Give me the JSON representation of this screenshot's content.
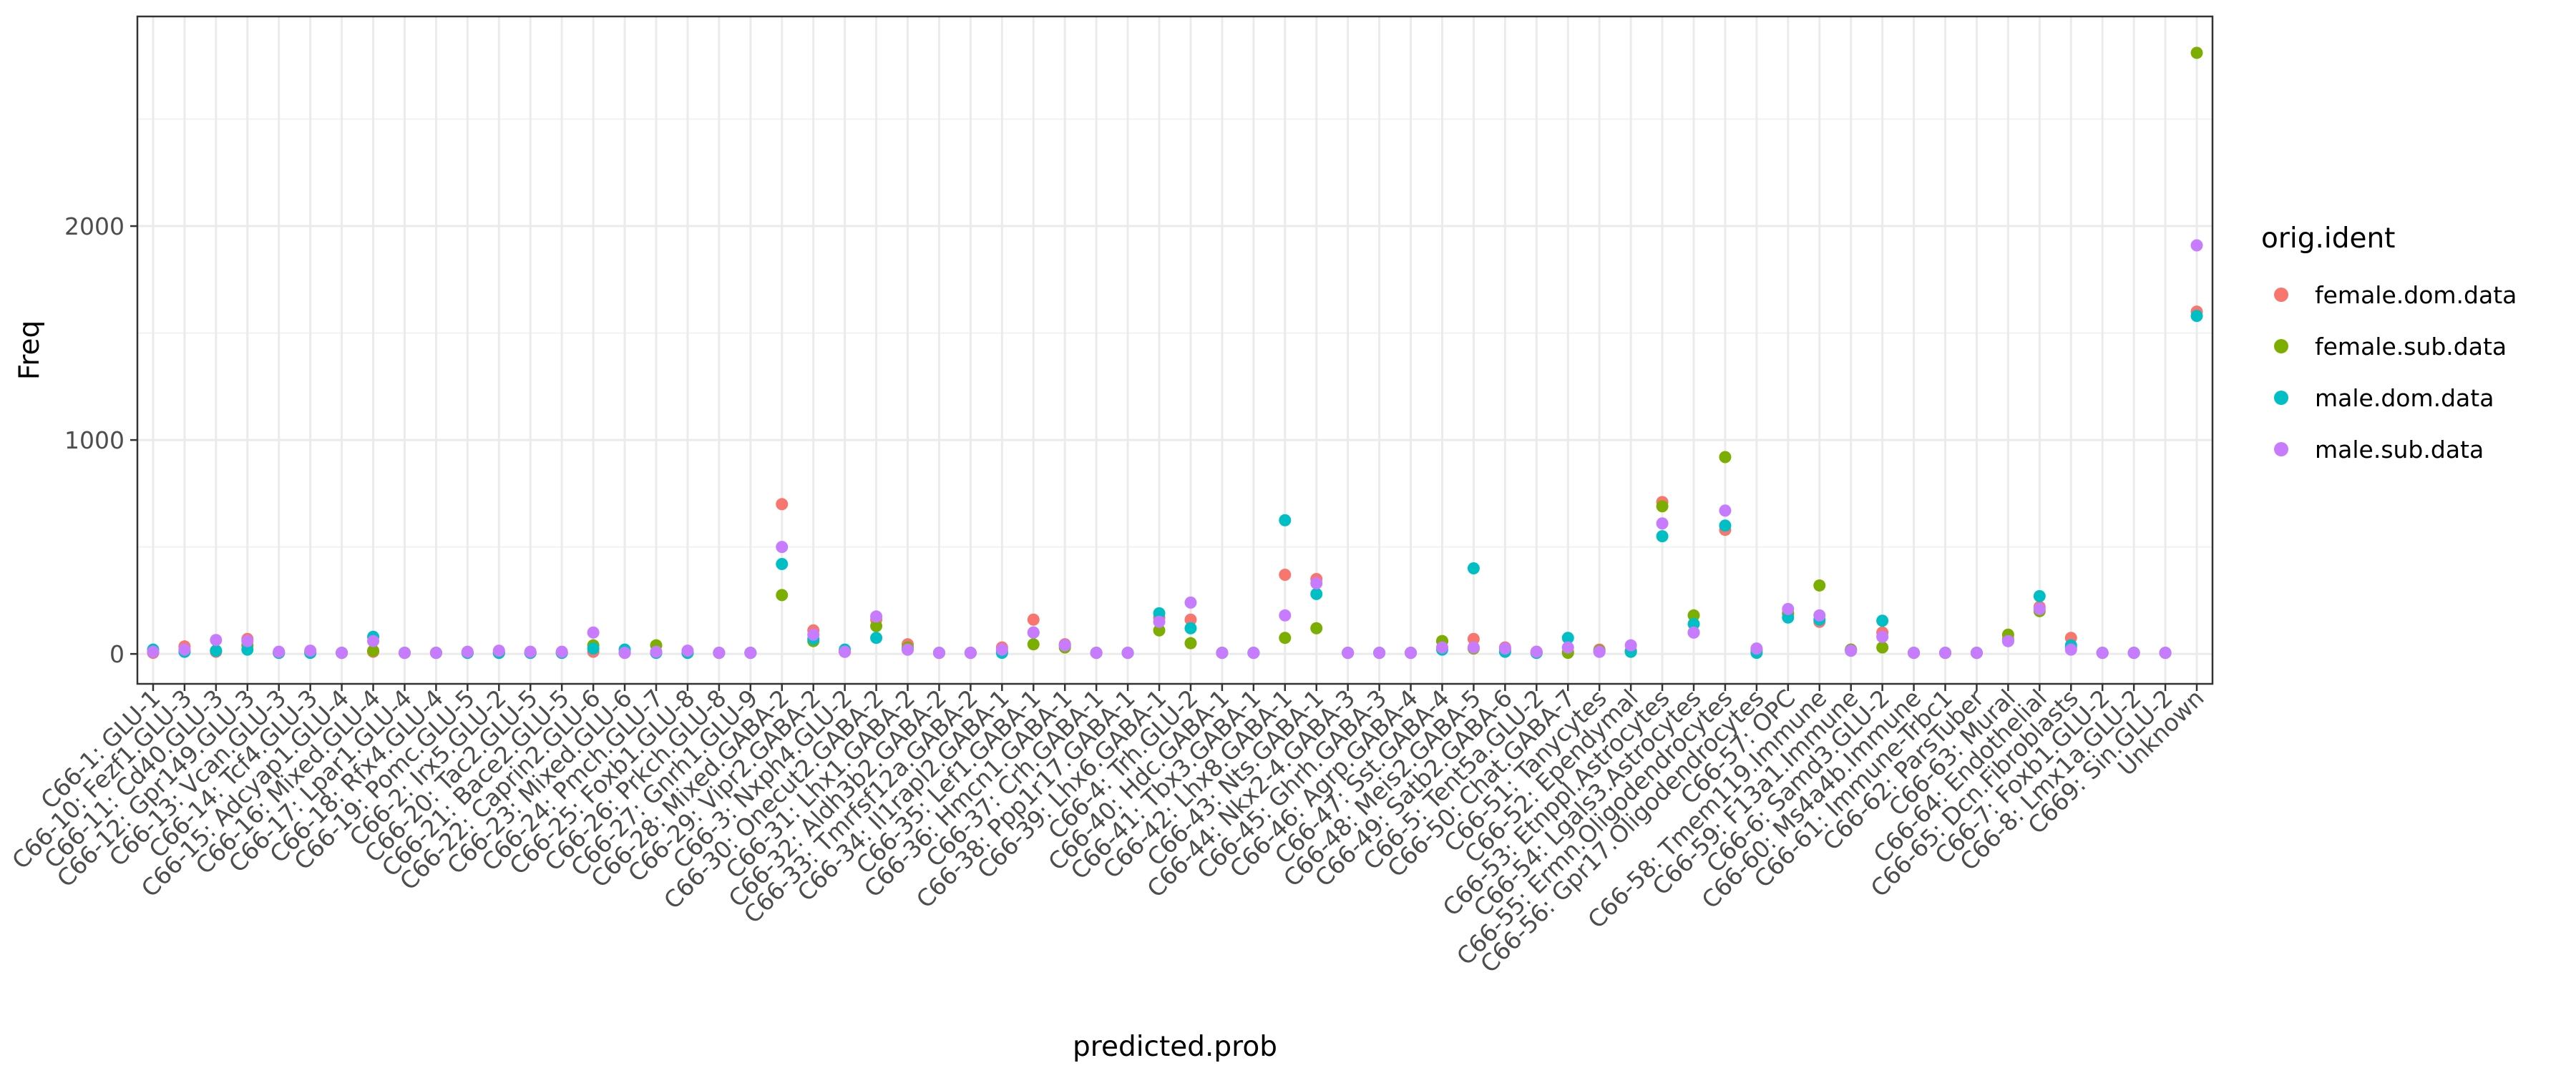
{
  "chart_data": {
    "type": "scatter",
    "xlabel": "predicted.prob",
    "ylabel": "Freq",
    "ylim": [
      -140,
      2980
    ],
    "yticks": [
      0,
      1000,
      2000
    ],
    "grid": true,
    "legend_title": "orig.ident",
    "legend_position": "right",
    "categories": [
      "C66-1: GLU-1",
      "C66-10: Fezf1.GLU-3",
      "C66-11: Cd40.GLU-3",
      "C66-12: Gpr149.GLU-3",
      "C66-13: Vcan.GLU-3",
      "C66-14: Tcf4.GLU-3",
      "C66-15: Adcyap1.GLU-4",
      "C66-16: Mixed.GLU-4",
      "C66-17: Lpar1.GLU-4",
      "C66-18: Rfx4.GLU-4",
      "C66-19: Pomc.GLU-5",
      "C66-2: Irx5.GLU-2",
      "C66-20: Tac2.GLU-5",
      "C66-21: Bace2.GLU-5",
      "C66-22: Caprin2.GLU-6",
      "C66-23: Mixed.GLU-6",
      "C66-24: Pmch.GLU-7",
      "C66-25: Foxb1.GLU-8",
      "C66-26: Prkch.GLU-8",
      "C66-27: Gnrh1.GLU-9",
      "C66-28: Mixed.GABA-2",
      "C66-29: Vipr2.GABA-2",
      "C66-3: Nxph4.GLU-2",
      "C66-30: Onecut2.GABA-2",
      "C66-31: Lhx1.GABA-2",
      "C66-32: Aldh3b2.GABA-2",
      "C66-33: Tmrfsf12a.GABA-2",
      "C66-34: Il1rapl2.GABA-1",
      "C66-35: Lef1.GABA-1",
      "C66-36: Hmcn1.GABA-1",
      "C66-37: Crh.GABA-1",
      "C66-38: Ppp1r17.GABA-1",
      "C66-39: Lhx6.GABA-1",
      "C66-4: Trh.GLU-2",
      "C66-40: Hdc.GABA-1",
      "C66-41: Tbx3.GABA-1",
      "C66-42: Lhx8.GABA-1",
      "C66-43: Nts.GABA-1",
      "C66-44: Nkx2-4.GABA-3",
      "C66-45: Ghrh.GABA-3",
      "C66-46: Agrp.GABA-4",
      "C66-47: Sst.GABA-4",
      "C66-48: Meis2.GABA-5",
      "C66-49: Satb2.GABA-6",
      "C66-5: Tent5a.GLU-2",
      "C66-50: Chat.GABA-7",
      "C66-51: Tanycytes",
      "C66-52: Ependymal",
      "C66-53: Etnppl.Astrocytes",
      "C66-54: Lgals3.Astrocytes",
      "C66-55: Ermn.Oligodendrocytes",
      "C66-56: Gpr17.Oligodendrocytes",
      "C66-57: OPC",
      "C66-58: Tmem119.Immune",
      "C66-59: F13a1.Immune",
      "C66-6: Samd3.GLU-2",
      "C66-60: Ms4a4b.Immune",
      "C66-61: Immune-Trbc1",
      "C66-62: ParsTuber",
      "C66-63: Mural",
      "C66-64: Endothelial",
      "C66-65: Dcn.Fibroblasts",
      "C66-7: Foxb1.GLU-2",
      "C66-8: Lmx1a.GLU-2",
      "C669: Sin.GLU-2",
      "Unknown"
    ],
    "series": [
      {
        "name": "female.dom.data",
        "color": "#F8766D",
        "values": [
          5,
          35,
          10,
          70,
          5,
          10,
          5,
          10,
          5,
          5,
          5,
          5,
          5,
          5,
          10,
          5,
          5,
          5,
          5,
          5,
          700,
          110,
          10,
          160,
          45,
          5,
          5,
          30,
          160,
          45,
          5,
          5,
          170,
          160,
          5,
          5,
          370,
          350,
          5,
          5,
          5,
          60,
          70,
          30,
          10,
          10,
          20,
          15,
          710,
          100,
          580,
          20,
          190,
          150,
          20,
          100,
          5,
          5,
          5,
          70,
          220,
          75,
          5,
          5,
          5,
          1600
        ]
      },
      {
        "name": "female.sub.data",
        "color": "#7CAE00",
        "values": [
          10,
          10,
          15,
          40,
          5,
          5,
          5,
          15,
          5,
          5,
          5,
          5,
          5,
          5,
          40,
          5,
          40,
          5,
          5,
          5,
          275,
          60,
          10,
          130,
          30,
          5,
          5,
          10,
          45,
          30,
          5,
          5,
          110,
          50,
          5,
          5,
          75,
          120,
          5,
          5,
          5,
          60,
          25,
          20,
          5,
          5,
          15,
          10,
          690,
          180,
          920,
          15,
          190,
          320,
          20,
          30,
          5,
          5,
          5,
          90,
          200,
          30,
          5,
          5,
          5,
          2810
        ]
      },
      {
        "name": "male.dom.data",
        "color": "#00BFC4",
        "values": [
          20,
          10,
          15,
          20,
          5,
          5,
          5,
          80,
          5,
          5,
          5,
          5,
          5,
          5,
          25,
          20,
          5,
          5,
          5,
          5,
          420,
          70,
          20,
          75,
          20,
          5,
          5,
          5,
          100,
          40,
          5,
          5,
          190,
          120,
          5,
          5,
          625,
          280,
          5,
          5,
          5,
          20,
          400,
          10,
          5,
          75,
          10,
          10,
          550,
          140,
          600,
          5,
          170,
          160,
          15,
          155,
          5,
          5,
          5,
          60,
          270,
          40,
          5,
          5,
          5,
          1580
        ]
      },
      {
        "name": "male.sub.data",
        "color": "#C77CFF",
        "values": [
          10,
          20,
          65,
          60,
          10,
          15,
          5,
          60,
          5,
          5,
          10,
          15,
          10,
          10,
          100,
          5,
          10,
          15,
          5,
          5,
          500,
          90,
          10,
          175,
          20,
          5,
          5,
          20,
          100,
          40,
          5,
          5,
          150,
          240,
          5,
          5,
          180,
          330,
          5,
          5,
          5,
          30,
          30,
          25,
          10,
          30,
          10,
          40,
          610,
          100,
          670,
          25,
          210,
          180,
          15,
          80,
          5,
          5,
          5,
          60,
          210,
          20,
          5,
          5,
          5,
          1910
        ]
      }
    ]
  }
}
